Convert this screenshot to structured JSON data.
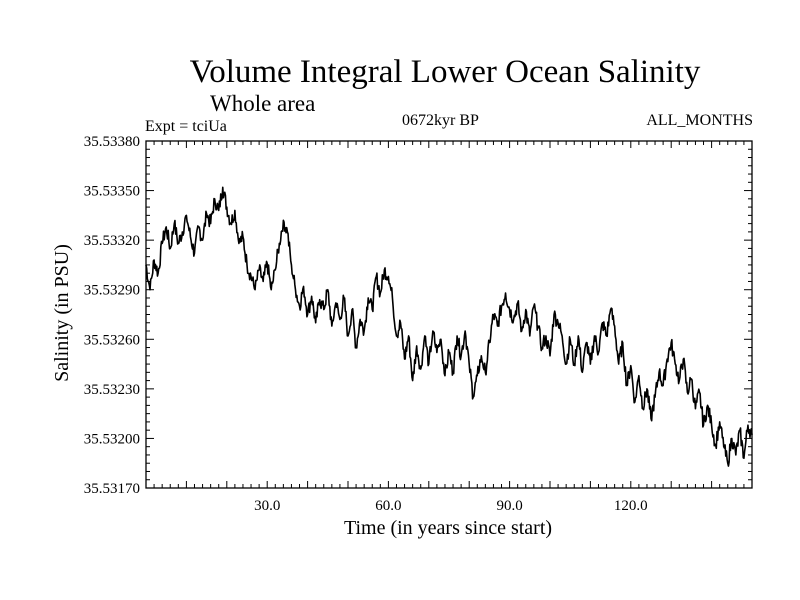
{
  "chart_data": {
    "type": "line",
    "title": "Volume Integral Lower Ocean Salinity",
    "subtitle": "Whole area",
    "annotations": {
      "experiment": "Expt = tciUa",
      "period": "0672kyr BP",
      "months": "ALL_MONTHS"
    },
    "xlabel": "Time (in years since start)",
    "ylabel": "Salinity (in PSU)",
    "xlim": [
      0,
      150
    ],
    "ylim": [
      35.5317,
      35.5338
    ],
    "x_ticks": [
      30,
      60,
      90,
      120
    ],
    "x_tick_labels": [
      "30.0",
      "60.0",
      "90.0",
      "120.0"
    ],
    "y_ticks": [
      35.5317,
      35.532,
      35.5323,
      35.5326,
      35.5329,
      35.5332,
      35.5335,
      35.5338
    ],
    "y_tick_labels": [
      "35.53170",
      "35.53200",
      "35.53230",
      "35.53260",
      "35.53290",
      "35.53320",
      "35.53350",
      "35.53380"
    ],
    "series": [
      {
        "name": "Salinity",
        "x": [
          0,
          1,
          2,
          3,
          4,
          5,
          6,
          7,
          8,
          9,
          10,
          11,
          12,
          13,
          14,
          15,
          16,
          17,
          18,
          19,
          20,
          21,
          22,
          23,
          24,
          25,
          26,
          27,
          28,
          29,
          30,
          31,
          32,
          33,
          34,
          35,
          36,
          37,
          38,
          39,
          40,
          41,
          42,
          43,
          44,
          45,
          46,
          47,
          48,
          49,
          50,
          51,
          52,
          53,
          54,
          55,
          56,
          57,
          58,
          59,
          60,
          61,
          62,
          63,
          64,
          65,
          66,
          67,
          68,
          69,
          70,
          71,
          72,
          73,
          74,
          75,
          76,
          77,
          78,
          79,
          80,
          81,
          82,
          83,
          84,
          85,
          86,
          87,
          88,
          89,
          90,
          91,
          92,
          93,
          94,
          95,
          96,
          97,
          98,
          99,
          100,
          101,
          102,
          103,
          104,
          105,
          106,
          107,
          108,
          109,
          110,
          111,
          112,
          113,
          114,
          115,
          116,
          117,
          118,
          119,
          120,
          121,
          122,
          123,
          124,
          125,
          126,
          127,
          128,
          129,
          130,
          131,
          132,
          133,
          134,
          135,
          136,
          137,
          138,
          139,
          140,
          141,
          142,
          143,
          144,
          145,
          146,
          147,
          148,
          149,
          150
        ],
        "values": [
          35.53305,
          35.5329,
          35.53308,
          35.533,
          35.53318,
          35.53328,
          35.53315,
          35.5333,
          35.53318,
          35.53325,
          35.53335,
          35.53322,
          35.53312,
          35.53328,
          35.5332,
          35.53336,
          35.5333,
          35.53345,
          35.53338,
          35.53352,
          35.5334,
          35.5333,
          35.53338,
          35.53318,
          35.53322,
          35.53305,
          35.53298,
          35.5329,
          35.53302,
          35.53295,
          35.53306,
          35.5329,
          35.53302,
          35.53318,
          35.53332,
          35.53325,
          35.53305,
          35.5329,
          35.5328,
          35.53292,
          35.53275,
          35.53286,
          35.5327,
          35.53284,
          35.53278,
          35.5329,
          35.53268,
          35.53282,
          35.53272,
          35.53285,
          35.53262,
          35.53278,
          35.53255,
          35.53272,
          35.53265,
          35.53285,
          35.53278,
          35.53298,
          35.53288,
          35.53302,
          35.53298,
          35.53285,
          35.53262,
          35.5327,
          35.53248,
          35.53262,
          35.53235,
          35.53256,
          35.53242,
          35.53262,
          35.53245,
          35.53265,
          35.53252,
          35.5326,
          35.53238,
          35.53252,
          35.5324,
          35.53262,
          35.5325,
          35.53265,
          35.53245,
          35.53225,
          35.53238,
          35.5325,
          35.5324,
          35.53258,
          35.53275,
          35.53268,
          35.5328,
          35.53288,
          35.53278,
          35.53272,
          35.53282,
          35.53265,
          35.53278,
          35.53262,
          35.5328,
          35.53268,
          35.53255,
          35.53262,
          35.5325,
          35.53275,
          35.5327,
          35.53262,
          35.53245,
          35.5326,
          35.53245,
          35.53262,
          35.5324,
          35.53258,
          35.53245,
          35.53262,
          35.53252,
          35.5327,
          35.53262,
          35.53278,
          35.53268,
          35.53245,
          35.53258,
          35.53232,
          35.53244,
          35.53222,
          35.53238,
          35.53218,
          35.5323,
          35.53212,
          35.53225,
          35.5324,
          35.53232,
          35.53248,
          35.53258,
          35.53245,
          35.53235,
          35.53248,
          35.53228,
          35.53236,
          35.53218,
          35.53228,
          35.53208,
          35.5322,
          35.53208,
          35.53196,
          35.5321,
          35.53195,
          35.53185,
          35.532,
          35.5319,
          35.53205,
          35.53188,
          35.53208,
          35.53202
        ]
      }
    ]
  }
}
